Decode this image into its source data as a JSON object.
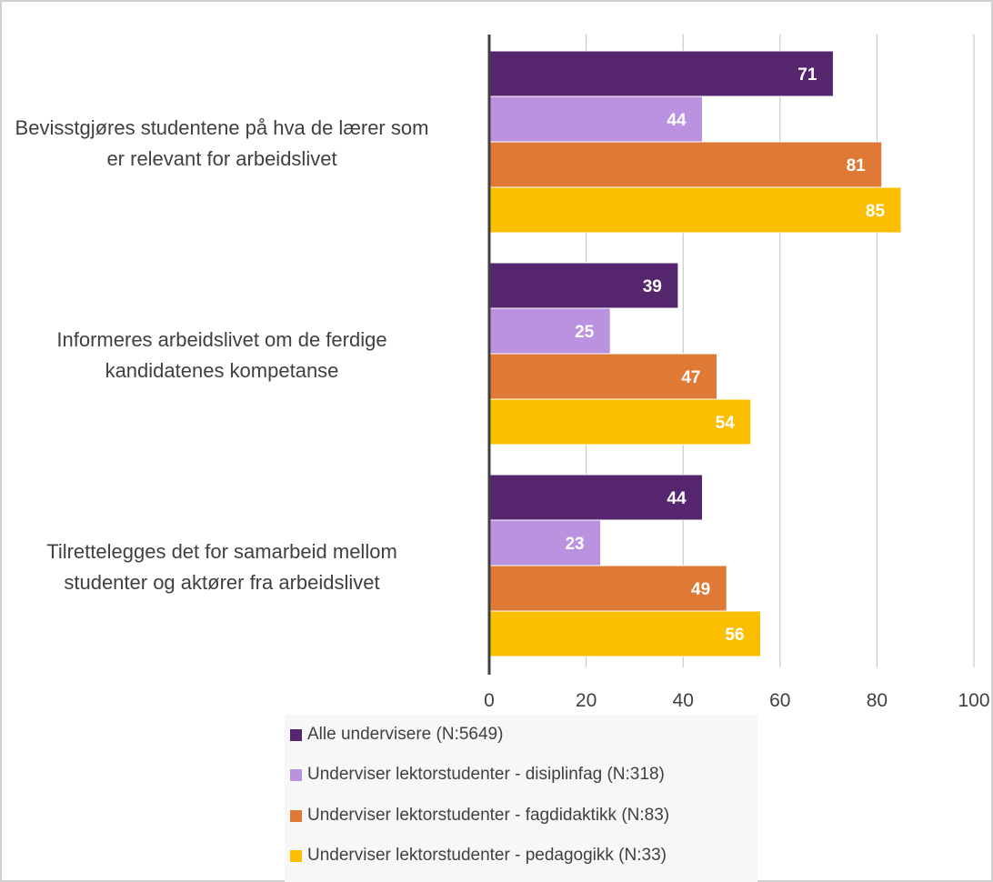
{
  "chart_data": {
    "type": "bar",
    "orientation": "horizontal",
    "categories": [
      "Bevisstgjøres studentene på hva de lærer som er relevant for arbeidslivet",
      "Informeres arbeidslivet om de ferdige kandidatenes kompetanse",
      "Tilrettelegges det for samarbeid mellom studenter og aktører fra arbeidslivet"
    ],
    "category_lines": [
      [
        "Bevisstgjøres studentene på hva de lærer som",
        "er relevant for arbeidslivet"
      ],
      [
        "Informeres arbeidslivet om de ferdige",
        "kandidatenes kompetanse"
      ],
      [
        "Tilrettelegges det for samarbeid mellom",
        "studenter og aktører fra arbeidslivet"
      ]
    ],
    "series": [
      {
        "name": "Alle undervisere (N:5649)",
        "values": [
          71,
          39,
          44
        ],
        "color": "#55266e"
      },
      {
        "name": "Underviser lektorstudenter - disiplinfag (N:318)",
        "values": [
          44,
          25,
          23
        ],
        "color": "#bb92e0"
      },
      {
        "name": "Underviser lektorstudenter - fagdidaktikk (N:83)",
        "values": [
          81,
          47,
          49
        ],
        "color": "#de7a35"
      },
      {
        "name": "Underviser lektorstudenter - pedagogikk (N:33)",
        "values": [
          85,
          54,
          56
        ],
        "color": "#fbbf00"
      }
    ],
    "xlim": [
      0,
      100
    ],
    "xticks": [
      "0",
      "20",
      "40",
      "60",
      "80",
      "100"
    ],
    "data_labels": true,
    "grid": true,
    "legend_position": "bottom"
  }
}
